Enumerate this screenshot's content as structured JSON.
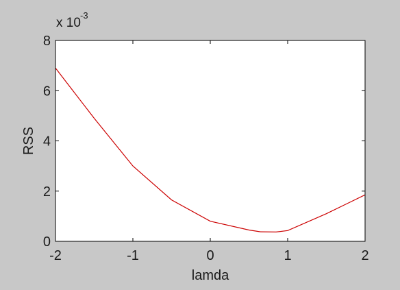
{
  "figure": {
    "background": "#c8c8c8",
    "axes_background": "#ffffff",
    "line_color": "#cc0000"
  },
  "chart_data": {
    "type": "line",
    "title": "",
    "xlabel": "lamda",
    "ylabel": "RSS",
    "y_scale_note": {
      "base": "x 10",
      "exponent": "-3"
    },
    "xlim": [
      -2,
      2
    ],
    "ylim": [
      0,
      8
    ],
    "y_multiplier": 0.001,
    "x_ticks": [
      -2,
      -1,
      0,
      1,
      2
    ],
    "y_ticks": [
      0,
      2,
      4,
      6,
      8
    ],
    "grid": false,
    "series": [
      {
        "x": [
          -2.0,
          -1.5,
          -1.0,
          -0.5,
          0.0,
          0.5,
          0.65,
          0.85,
          1.0,
          1.5,
          2.0
        ],
        "y": [
          6.9,
          4.9,
          3.0,
          1.65,
          0.8,
          0.45,
          0.38,
          0.37,
          0.43,
          1.1,
          1.85
        ]
      }
    ]
  }
}
